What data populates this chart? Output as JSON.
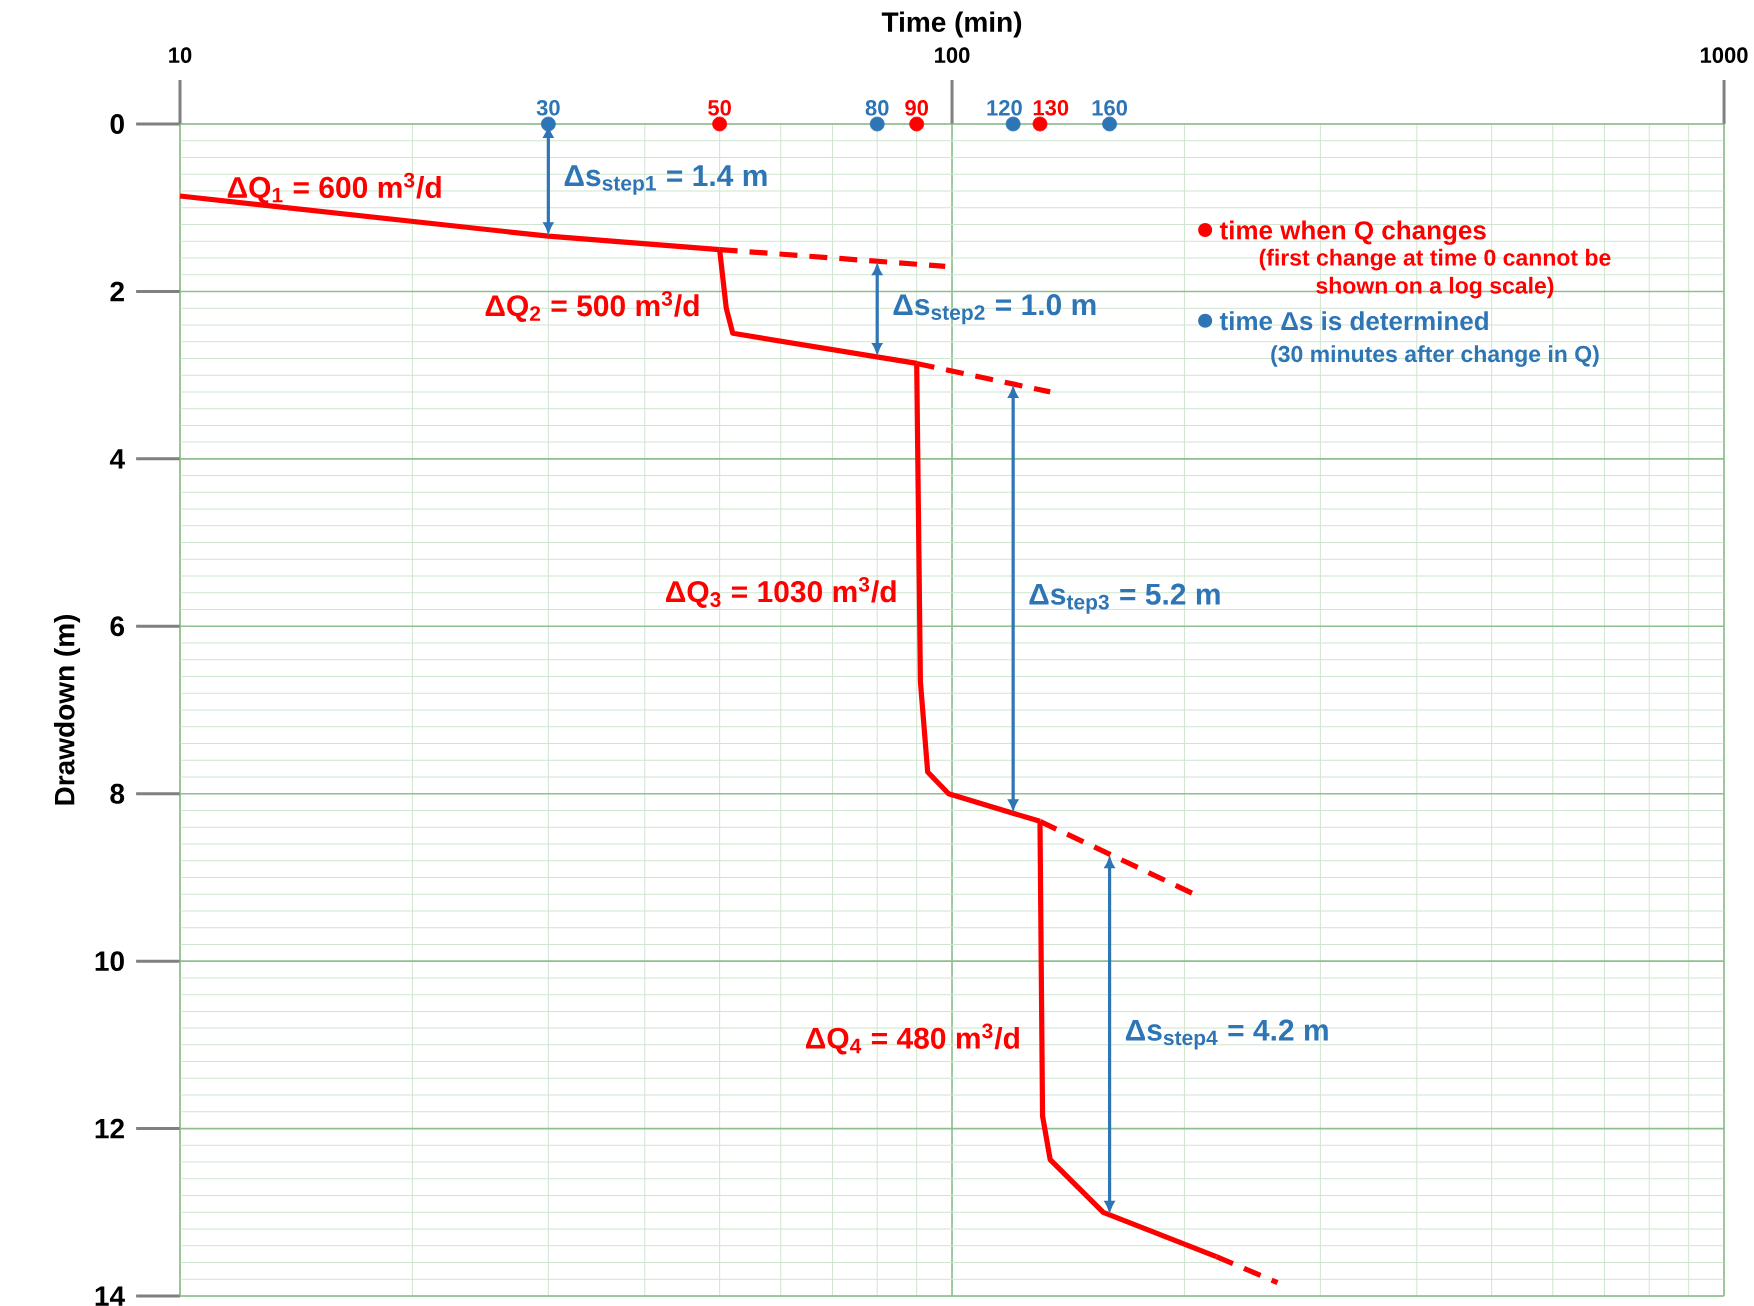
{
  "chart_data": {
    "type": "line",
    "xlabel": "Time (min)",
    "ylabel": "Drawdown (m)",
    "log": "x",
    "grid": true,
    "legend": "top right",
    "xlim": [
      10,
      1000
    ],
    "xticks": [
      10,
      100,
      1000
    ],
    "ylim": [
      14,
      0
    ],
    "yticks": [
      0,
      2,
      4,
      6,
      8,
      10,
      12,
      14
    ],
    "annotations": [
      "(first change at time 0 cannot be shown on a log scale)",
      "(30 minutes after change in Q)",
      "Δs$_{step1}$ = 1.4 m",
      "Δs$_{step2}$ = 1.0 m",
      "Δs$_{tep3}$ = 5.2 m",
      "Δs$_{step4}$ = 4.2 m",
      {
        "text": "30",
        "x": 30,
        "y": 0
      },
      {
        "text": "50",
        "x": 50,
        "y": 0
      },
      {
        "text": "80",
        "x": 80,
        "y": 0
      },
      {
        "text": "90",
        "x": 90,
        "y": 0
      },
      {
        "text": "120",
        "x": 120,
        "y": 0
      },
      {
        "text": "130",
        "x": 130,
        "y": 0
      },
      {
        "text": "160",
        "x": 160,
        "y": 0
      }
    ],
    "series": [
      {
        "name": "ΔQ$_{1}$ = 600 m$^{3}$/d",
        "color": "#ff0000",
        "x": [
          10,
          30,
          50
        ],
        "values": [
          0.86,
          1.34,
          1.5
        ]
      },
      {
        "name": "ΔQ$_{2}$ = 500 m$^{3}$/d",
        "color": "#ff0000",
        "x": [
          50,
          51,
          52,
          90
        ],
        "values": [
          1.5,
          2.2,
          2.5,
          2.86
        ]
      },
      {
        "name": "ΔQ$_{3}$ = 1030 m$^{3}$/d",
        "color": "#ff0000",
        "x": [
          90,
          91,
          93,
          99,
          130
        ],
        "values": [
          2.86,
          6.66,
          7.74,
          8.0,
          8.33
        ]
      },
      {
        "name": "ΔQ$_{4}$ = 480 m$^{3}$/d",
        "color": "#ff0000",
        "x": [
          130,
          131,
          134,
          157,
          220
        ],
        "values": [
          8.33,
          11.85,
          12.37,
          13.0,
          13.53
        ]
      },
      {
        "color": "#ff0000",
        "line_style": "dashed",
        "x": [
          50,
          98
        ],
        "values": [
          1.5,
          1.7
        ]
      },
      {
        "color": "#ff0000",
        "line_style": "dashed",
        "x": [
          90,
          134
        ],
        "values": [
          2.86,
          3.2
        ]
      },
      {
        "color": "#ff0000",
        "line_style": "dashed",
        "x": [
          130,
          206
        ],
        "values": [
          8.33,
          9.2
        ]
      },
      {
        "color": "#ff0000",
        "line_style": "dashed",
        "x": [
          220,
          264
        ],
        "values": [
          13.53,
          13.84
        ]
      },
      {
        "type": "scatter",
        "name": "time when Q changes",
        "color": "#ff0000",
        "marker": "circle",
        "x": [
          50,
          90,
          130
        ],
        "values": [
          0,
          0,
          0
        ]
      },
      {
        "type": "scatter",
        "name": "time Δs is determined",
        "color": "#2e75b6",
        "marker": "circle",
        "x": [
          30,
          80,
          120,
          160
        ],
        "values": [
          0,
          0,
          0,
          0
        ]
      }
    ]
  }
}
